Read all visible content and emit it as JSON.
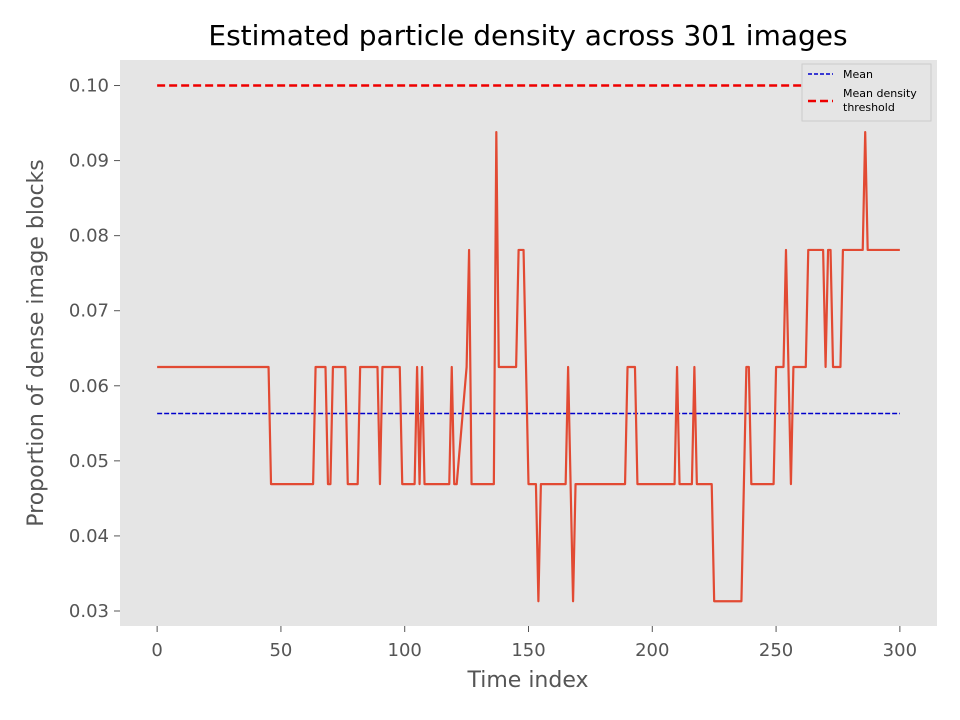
{
  "chart_data": {
    "type": "line",
    "title": "Estimated particle density across 301 images",
    "xlabel": "Time index",
    "ylabel": "Proportion of dense image blocks",
    "xlim": [
      -15,
      315
    ],
    "ylim": [
      0.028,
      0.1034
    ],
    "xticks": [
      0,
      50,
      100,
      150,
      200,
      250,
      300
    ],
    "xtick_labels": [
      "0",
      "50",
      "100",
      "150",
      "200",
      "250",
      "300"
    ],
    "yticks": [
      0.03,
      0.04,
      0.05,
      0.06,
      0.07,
      0.08,
      0.09,
      0.1
    ],
    "ytick_labels": [
      "0.03",
      "0.04",
      "0.05",
      "0.06",
      "0.07",
      "0.08",
      "0.09",
      "0.10"
    ],
    "grid": false,
    "legend_position": "top-right",
    "colors": {
      "background": "#e5e5e5",
      "series": "#e24a33",
      "mean": "#0000cc",
      "threshold": "#ee0000"
    },
    "series": [
      {
        "name": "",
        "x": [
          0,
          45,
          46,
          63,
          64,
          68,
          69,
          70,
          71,
          76,
          77,
          81,
          82,
          89,
          90,
          91,
          92,
          98,
          99,
          104,
          105,
          106,
          107,
          108,
          118,
          119,
          120,
          121,
          125,
          126,
          127,
          136,
          137,
          138,
          145,
          146,
          148,
          149,
          150,
          153,
          154,
          155,
          156,
          165,
          166,
          167,
          168,
          169,
          170,
          189,
          190,
          193,
          194,
          209,
          210,
          211,
          216,
          217,
          218,
          224,
          225,
          236,
          237,
          238,
          239,
          240,
          249,
          250,
          253,
          254,
          255,
          256,
          257,
          262,
          263,
          268,
          269,
          270,
          271,
          272,
          273,
          276,
          277,
          285,
          286,
          287,
          300
        ],
        "values": [
          0.0625,
          0.0625,
          0.0469,
          0.0469,
          0.0625,
          0.0625,
          0.0469,
          0.0469,
          0.0625,
          0.0625,
          0.0469,
          0.0469,
          0.0625,
          0.0625,
          0.0469,
          0.0625,
          0.0625,
          0.0625,
          0.0469,
          0.0469,
          0.0625,
          0.0469,
          0.0625,
          0.0469,
          0.0469,
          0.0625,
          0.0469,
          0.0469,
          0.0625,
          0.0781,
          0.0469,
          0.0469,
          0.0938,
          0.0625,
          0.0625,
          0.0781,
          0.0781,
          0.0625,
          0.0469,
          0.0469,
          0.0313,
          0.0469,
          0.0469,
          0.0469,
          0.0625,
          0.0469,
          0.0313,
          0.0469,
          0.0469,
          0.0469,
          0.0625,
          0.0625,
          0.0469,
          0.0469,
          0.0625,
          0.0469,
          0.0469,
          0.0625,
          0.0469,
          0.0469,
          0.0313,
          0.0313,
          0.0469,
          0.0625,
          0.0625,
          0.0469,
          0.0469,
          0.0625,
          0.0625,
          0.0781,
          0.0625,
          0.0469,
          0.0625,
          0.0625,
          0.0781,
          0.0781,
          0.0781,
          0.0625,
          0.0781,
          0.0781,
          0.0625,
          0.0625,
          0.0781,
          0.0781,
          0.0938,
          0.0781,
          0.0781
        ]
      },
      {
        "name": "Mean",
        "x": [
          0,
          300
        ],
        "values": [
          0.0563,
          0.0563
        ]
      },
      {
        "name": "Mean density threshold",
        "legend_lines": [
          "Mean density",
          "threshold"
        ],
        "x": [
          0,
          300
        ],
        "values": [
          0.1,
          0.1
        ]
      }
    ]
  }
}
